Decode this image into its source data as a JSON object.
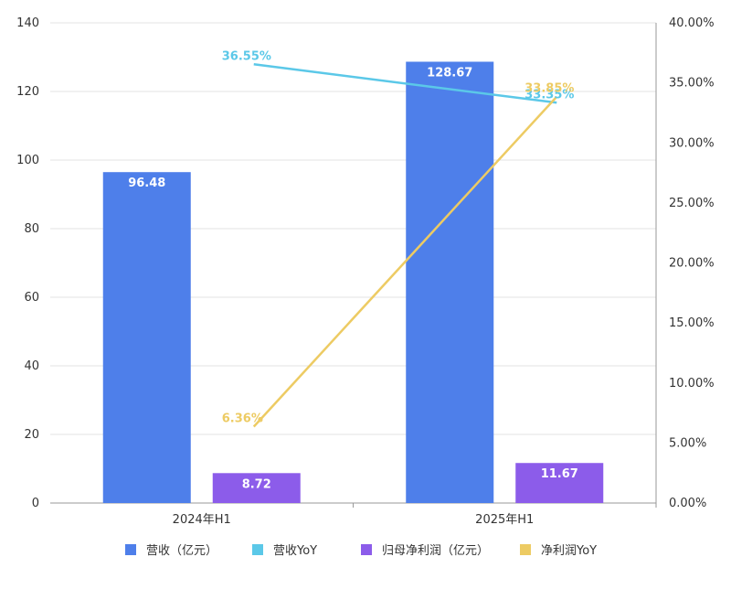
{
  "chart_data": {
    "type": "bar",
    "categories": [
      "2024年H1",
      "2025年H1"
    ],
    "series": [
      {
        "name": "营收（亿元）",
        "kind": "bar",
        "axis": "left",
        "values": [
          96.48,
          128.67
        ],
        "labels": [
          "96.48",
          "128.67"
        ],
        "color": "#4E7FEA"
      },
      {
        "name": "营收YoY",
        "kind": "line",
        "axis": "right",
        "values": [
          36.55,
          33.35
        ],
        "labels": [
          "36.55%",
          "33.35%"
        ],
        "color": "#5BC8E8"
      },
      {
        "name": "归母净利润（亿元）",
        "kind": "bar",
        "axis": "left",
        "values": [
          8.72,
          11.67
        ],
        "labels": [
          "8.72",
          "11.67"
        ],
        "color": "#8C5CEA"
      },
      {
        "name": "净利润YoY",
        "kind": "line",
        "axis": "right",
        "values": [
          6.36,
          33.85
        ],
        "labels": [
          "6.36%",
          "33.85%"
        ],
        "color": "#EDCB63"
      }
    ],
    "y_left": {
      "min": 0,
      "max": 140,
      "ticks": [
        "0",
        "20",
        "40",
        "60",
        "80",
        "100",
        "120",
        "140"
      ]
    },
    "y_right": {
      "min": 0,
      "max": 40,
      "unit": "%",
      "ticks": [
        "0.00%",
        "5.00%",
        "10.00%",
        "15.00%",
        "20.00%",
        "25.00%",
        "30.00%",
        "35.00%",
        "40.00%"
      ]
    },
    "grid": true,
    "legend_position": "bottom"
  }
}
